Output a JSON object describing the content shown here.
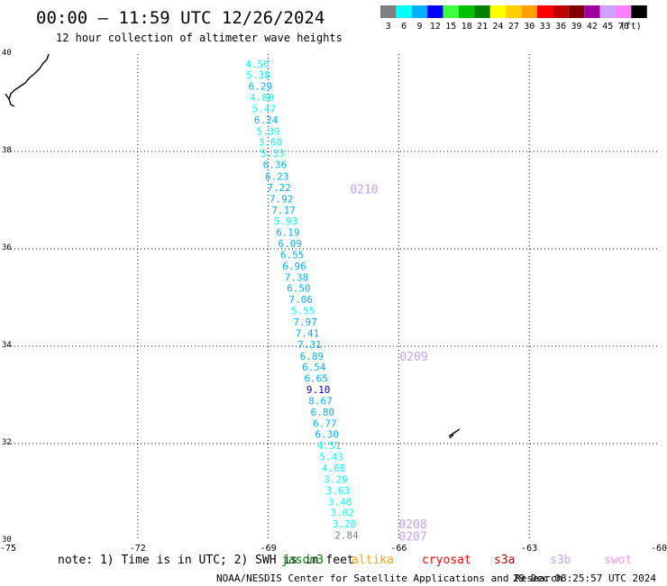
{
  "header": {
    "title": "00:00 – 11:59 UTC 12/26/2024",
    "subtitle": "12 hour collection of altimeter wave heights"
  },
  "legend": {
    "bins": [
      {
        "label": "3",
        "color": "#808080"
      },
      {
        "label": "6",
        "color": "#00ffff"
      },
      {
        "label": "9",
        "color": "#00b0ff"
      },
      {
        "label": "12",
        "color": "#0000ff"
      },
      {
        "label": "15",
        "color": "#40ff40"
      },
      {
        "label": "18",
        "color": "#00c000"
      },
      {
        "label": "21",
        "color": "#008000"
      },
      {
        "label": "24",
        "color": "#ffff00"
      },
      {
        "label": "27",
        "color": "#ffd000"
      },
      {
        "label": "30",
        "color": "#ffa000"
      },
      {
        "label": "33",
        "color": "#ff0000"
      },
      {
        "label": "36",
        "color": "#c00000"
      },
      {
        "label": "39",
        "color": "#800000"
      },
      {
        "label": "42",
        "color": "#a000a0"
      },
      {
        "label": "45",
        "color": "#d0a0ff"
      },
      {
        "label": "70",
        "color": "#ff80ff"
      },
      {
        "label": "",
        "color": "#000000"
      }
    ],
    "unit": "(ft)"
  },
  "footer": {
    "note": "note: 1) Time is in UTC; 2) SWH is in feet",
    "satellites": [
      {
        "name": "jason3",
        "color": "#008000"
      },
      {
        "name": "altika",
        "color": "#ffa000"
      },
      {
        "name": "cryosat",
        "color": "#ff0000"
      },
      {
        "name": "s3a",
        "color": "#c00000"
      },
      {
        "name": "s3b",
        "color": "#c0a0ff"
      },
      {
        "name": "swot",
        "color": "#ff90ff"
      }
    ],
    "credit": "NOAA/NESDIS Center for Satellite Applications and Research",
    "timestamp": "29 Dec 08:25:57 UTC 2024"
  },
  "chart_data": {
    "type": "scatter",
    "xlim": [
      -75,
      -60
    ],
    "ylim": [
      30,
      40
    ],
    "x_ticks": [
      "-75",
      "-72",
      "-69",
      "-66",
      "-63",
      "-60"
    ],
    "y_ticks": [
      "30",
      "32",
      "34",
      "36",
      "38",
      "40"
    ],
    "grid": true,
    "series": [
      {
        "name": "s3b",
        "color": "#c0a0ff",
        "points": [
          {
            "x": -69.25,
            "y": 39.8,
            "value": "4.56",
            "color": "#00ffff"
          },
          {
            "x": -69.23,
            "y": 39.57,
            "value": "5.38",
            "color": "#00ffff"
          },
          {
            "x": -69.18,
            "y": 39.34,
            "value": "6.29",
            "color": "#00b0ff"
          },
          {
            "x": -69.15,
            "y": 39.11,
            "value": "4.80",
            "color": "#00ffff"
          },
          {
            "x": -69.1,
            "y": 38.88,
            "value": "5.47",
            "color": "#00ffff"
          },
          {
            "x": -69.05,
            "y": 38.65,
            "value": "6.24",
            "color": "#00b0ff"
          },
          {
            "x": -69.0,
            "y": 38.42,
            "value": "5.39",
            "color": "#00ffff"
          },
          {
            "x": -68.95,
            "y": 38.19,
            "value": "3.60",
            "color": "#00ffff"
          },
          {
            "x": -68.9,
            "y": 37.96,
            "value": "5.33",
            "color": "#00ffff"
          },
          {
            "x": -68.85,
            "y": 37.73,
            "value": "6.36",
            "color": "#00b0ff"
          },
          {
            "x": -68.8,
            "y": 37.49,
            "value": "6.23",
            "color": "#00b0ff"
          },
          {
            "x": -68.75,
            "y": 37.26,
            "value": "7.22",
            "color": "#00b0ff"
          },
          {
            "x": -68.7,
            "y": 37.03,
            "value": "7.92",
            "color": "#00b0ff"
          },
          {
            "x": -68.65,
            "y": 36.8,
            "value": "7.17",
            "color": "#00b0ff"
          },
          {
            "x": -68.6,
            "y": 36.57,
            "value": "5.93",
            "color": "#00ffff"
          },
          {
            "x": -68.55,
            "y": 36.34,
            "value": "6.19",
            "color": "#00b0ff"
          },
          {
            "x": -68.5,
            "y": 36.11,
            "value": "6.09",
            "color": "#00b0ff"
          },
          {
            "x": -68.45,
            "y": 35.88,
            "value": "6.55",
            "color": "#00b0ff"
          },
          {
            "x": -68.4,
            "y": 35.65,
            "value": "6.96",
            "color": "#00b0ff"
          },
          {
            "x": -68.35,
            "y": 35.42,
            "value": "7.38",
            "color": "#00b0ff"
          },
          {
            "x": -68.3,
            "y": 35.19,
            "value": "6.50",
            "color": "#00b0ff"
          },
          {
            "x": -68.25,
            "y": 34.96,
            "value": "7.06",
            "color": "#00b0ff"
          },
          {
            "x": -68.2,
            "y": 34.73,
            "value": "5.55",
            "color": "#00ffff"
          },
          {
            "x": -68.15,
            "y": 34.5,
            "value": "7.97",
            "color": "#00b0ff"
          },
          {
            "x": -68.1,
            "y": 34.27,
            "value": "7.41",
            "color": "#00b0ff"
          },
          {
            "x": -68.05,
            "y": 34.04,
            "value": "7.31",
            "color": "#00b0ff"
          },
          {
            "x": -68.0,
            "y": 33.8,
            "value": "6.89",
            "color": "#00b0ff"
          },
          {
            "x": -67.95,
            "y": 33.57,
            "value": "6.54",
            "color": "#00b0ff"
          },
          {
            "x": -67.9,
            "y": 33.34,
            "value": "6.65",
            "color": "#00b0ff"
          },
          {
            "x": -67.85,
            "y": 33.11,
            "value": "9.10",
            "color": "#0000c0"
          },
          {
            "x": -67.8,
            "y": 32.88,
            "value": "8.67",
            "color": "#00b0ff"
          },
          {
            "x": -67.75,
            "y": 32.65,
            "value": "6.80",
            "color": "#00b0ff"
          },
          {
            "x": -67.7,
            "y": 32.42,
            "value": "6.77",
            "color": "#00b0ff"
          },
          {
            "x": -67.65,
            "y": 32.19,
            "value": "6.30",
            "color": "#00b0ff"
          },
          {
            "x": -67.6,
            "y": 31.96,
            "value": "4.51",
            "color": "#00ffff"
          },
          {
            "x": -67.55,
            "y": 31.73,
            "value": "5.43",
            "color": "#00ffff"
          },
          {
            "x": -67.5,
            "y": 31.5,
            "value": "4.68",
            "color": "#00ffff"
          },
          {
            "x": -67.45,
            "y": 31.27,
            "value": "3.29",
            "color": "#00ffff"
          },
          {
            "x": -67.4,
            "y": 31.04,
            "value": "3.63",
            "color": "#00ffff"
          },
          {
            "x": -67.35,
            "y": 30.81,
            "value": "3.46",
            "color": "#00ffff"
          },
          {
            "x": -67.3,
            "y": 30.58,
            "value": "3.02",
            "color": "#00ffff"
          },
          {
            "x": -67.25,
            "y": 30.35,
            "value": "3.20",
            "color": "#00ffff"
          },
          {
            "x": -67.2,
            "y": 30.12,
            "value": "2.84",
            "color": "#808080"
          }
        ]
      }
    ],
    "annotations": [
      {
        "text": "0210",
        "x": -67.12,
        "y": 37.23,
        "color": "#c0a0ff"
      },
      {
        "text": "0209",
        "x": -65.98,
        "y": 33.8,
        "color": "#c0a0ff"
      },
      {
        "text": "0208",
        "x": -66.0,
        "y": 30.35,
        "color": "#c0a0ff"
      },
      {
        "text": "0207",
        "x": -66.0,
        "y": 30.1,
        "color": "#c0a0ff"
      }
    ]
  }
}
